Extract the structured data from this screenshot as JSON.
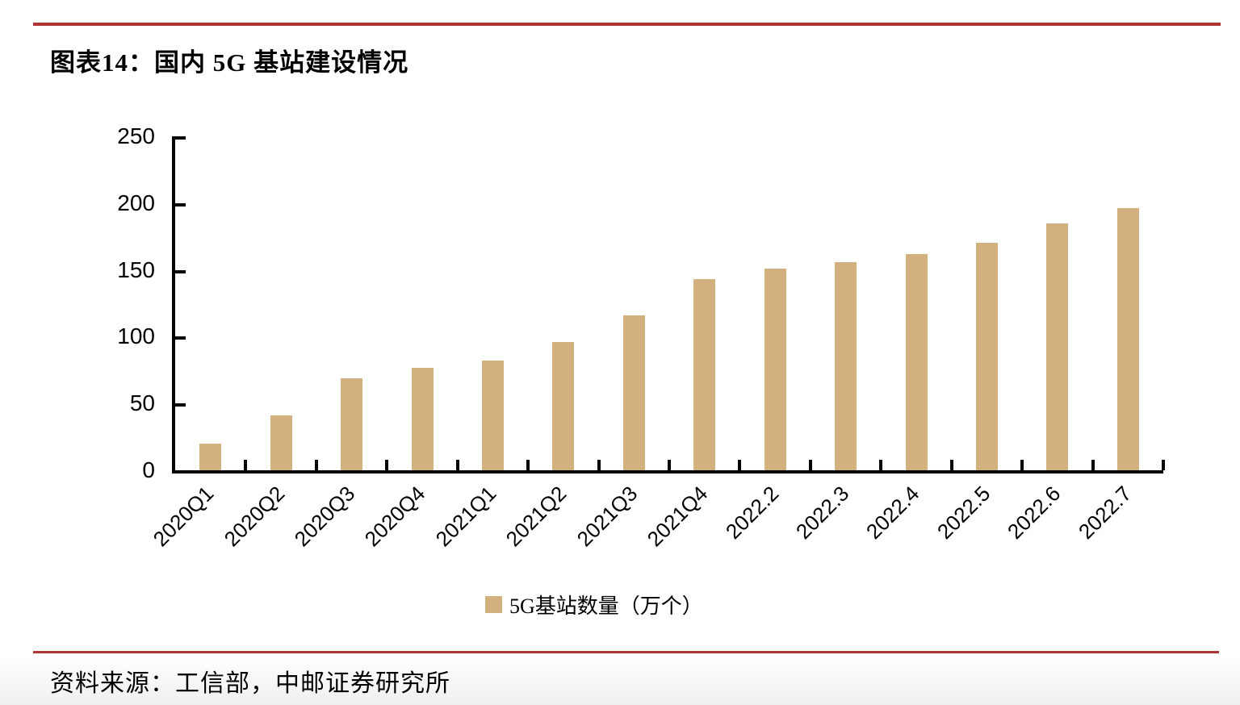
{
  "figure": {
    "title": "图表14：国内 5G 基站建设情况",
    "source": "资料来源：工信部，中邮证券研究所"
  },
  "chart_data": {
    "type": "bar",
    "title": "图表14：国内 5G 基站建设情况",
    "legend": "5G基站数量（万个）",
    "legend_position": "bottom",
    "categories": [
      "2020Q1",
      "2020Q2",
      "2020Q3",
      "2020Q4",
      "2021Q1",
      "2021Q2",
      "2021Q3",
      "2021Q4",
      "2022.2",
      "2022.3",
      "2022.4",
      "2022.5",
      "2022.6",
      "2022.7"
    ],
    "values": [
      20,
      41,
      69,
      77,
      82,
      96,
      116,
      143,
      151,
      156,
      162,
      170,
      185,
      196
    ],
    "xlabel": "",
    "ylabel": "",
    "ylim": [
      0,
      250
    ],
    "yticks": [
      0,
      50,
      100,
      150,
      200,
      250
    ],
    "grid": false,
    "bar_color": "#d3b17e",
    "axis_color": "#000000",
    "accent_rule_color": "#b13434"
  }
}
